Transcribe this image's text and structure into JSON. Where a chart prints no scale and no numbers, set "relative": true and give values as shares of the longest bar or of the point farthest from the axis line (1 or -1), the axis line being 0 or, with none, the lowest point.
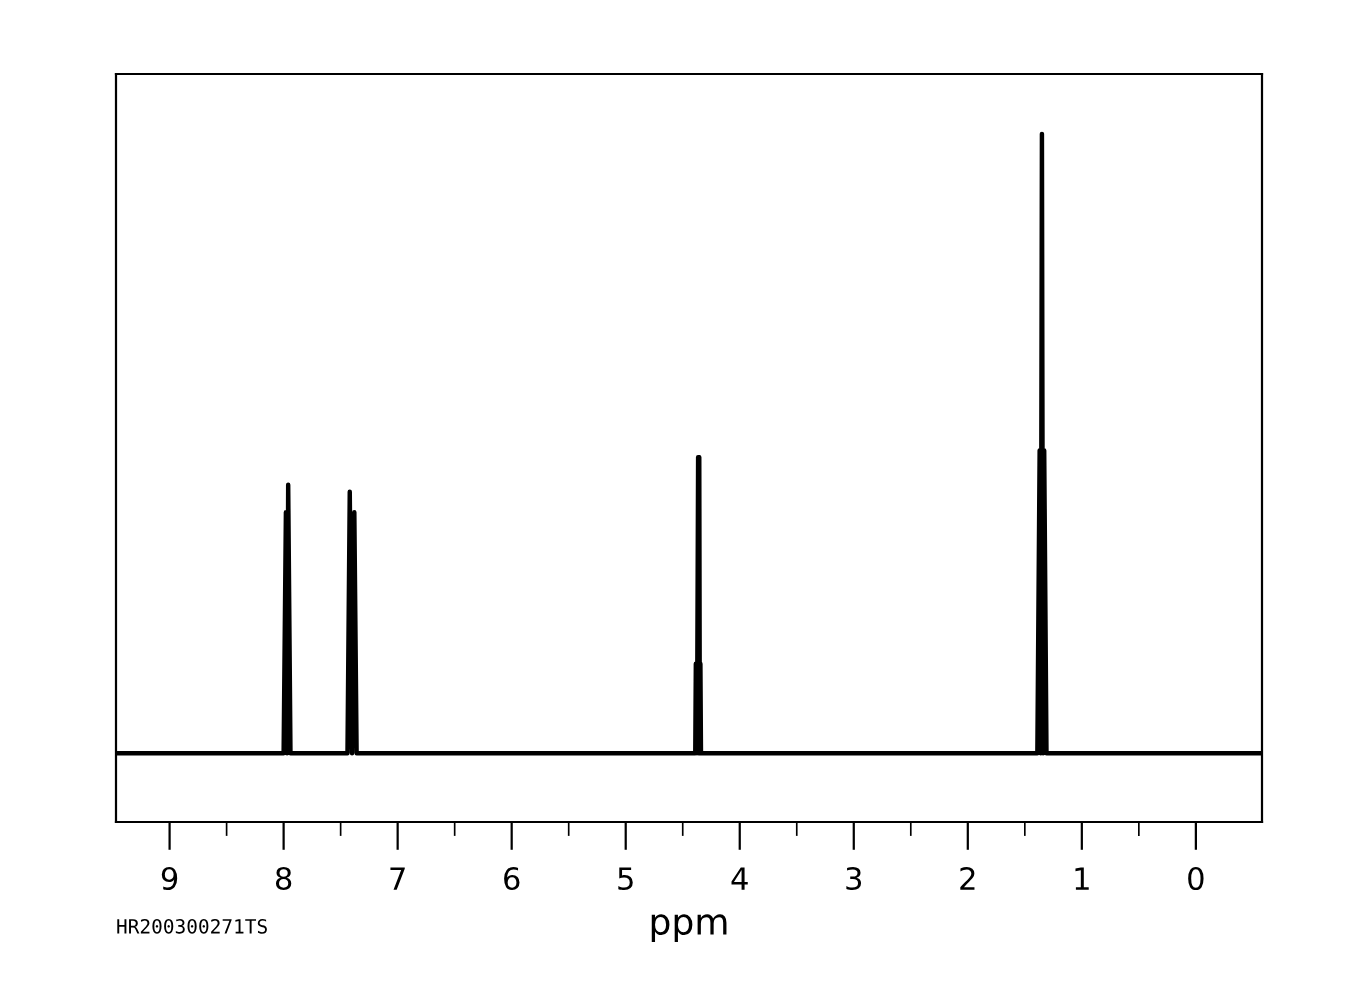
{
  "chart_data": {
    "type": "line",
    "relative": true,
    "xlabel": "ppm",
    "tick_labels": "x",
    "grid": false,
    "marker": "none",
    "line_style": "solid",
    "xlim": [
      9.47,
      -0.58
    ],
    "xticks": [
      9,
      {
        "value": 8.5,
        "label": null
      },
      8,
      {
        "value": 7.5,
        "label": null
      },
      7,
      {
        "value": 6.5,
        "label": null
      },
      6,
      {
        "value": 5.5,
        "label": null
      },
      5,
      {
        "value": 4.5,
        "label": null
      },
      4,
      {
        "value": 3.5,
        "label": null
      },
      3,
      {
        "value": 2.5,
        "label": null
      },
      2,
      {
        "value": 1.5,
        "label": null
      },
      1,
      {
        "value": 0.5,
        "label": null
      },
      0
    ],
    "annotations": [
      "HR200300271TS"
    ],
    "series": [
      {
        "color": "#000000",
        "x": [
          9.47,
          8.0,
          7.98,
          7.97,
          7.96,
          7.94,
          7.44,
          7.42,
          7.4,
          7.38,
          7.36,
          4.39,
          4.385,
          4.375,
          4.365,
          4.36,
          4.355,
          4.35,
          4.345,
          4.34,
          1.39,
          1.37,
          1.36,
          1.35,
          1.34,
          1.33,
          1.31,
          -0.58
        ],
        "values": [
          0.1,
          0.1,
          0.45,
          0.1,
          0.49,
          0.1,
          0.1,
          0.48,
          0.1,
          0.45,
          0.1,
          0.1,
          0.23,
          0.1,
          0.53,
          0.1,
          0.53,
          0.1,
          0.23,
          0.1,
          0.1,
          0.54,
          0.1,
          1.0,
          0.1,
          0.54,
          0.1,
          0.1
        ]
      }
    ]
  }
}
